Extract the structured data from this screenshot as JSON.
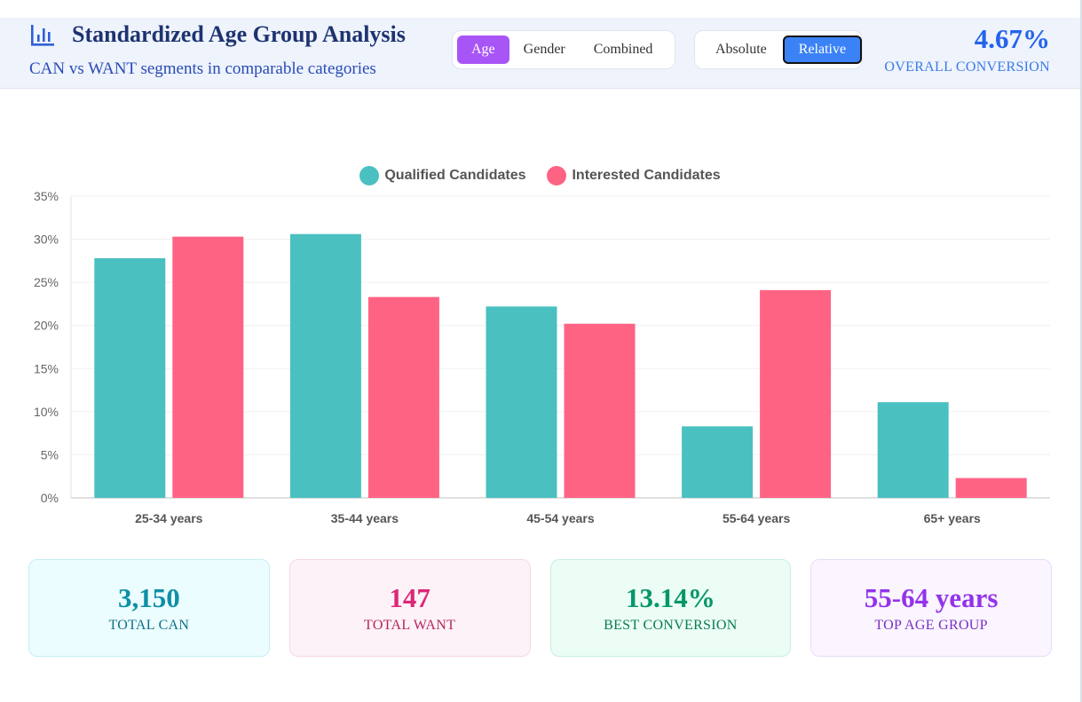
{
  "header": {
    "title": "Standardized Age Group Analysis",
    "subtitle": "CAN vs WANT segments in comparable categories",
    "icon": "bar-chart-icon",
    "group_tabs": [
      "Age",
      "Gender",
      "Combined"
    ],
    "active_group": "Age",
    "mode_tabs": [
      "Absolute",
      "Relative"
    ],
    "active_mode": "Relative",
    "overall_value": "4.67%",
    "overall_label": "OVERALL CONVERSION"
  },
  "chart_data": {
    "type": "bar",
    "categories": [
      "25-34 years",
      "35-44 years",
      "45-54 years",
      "55-64 years",
      "65+ years"
    ],
    "series": [
      {
        "name": "Qualified Candidates",
        "color": "#4bc0c0",
        "values": [
          27.8,
          30.6,
          22.2,
          8.3,
          11.1
        ]
      },
      {
        "name": "Interested Candidates",
        "color": "#ff6384",
        "values": [
          30.3,
          23.3,
          20.2,
          24.1,
          2.3
        ]
      }
    ],
    "y_ticks": [
      "0%",
      "5%",
      "10%",
      "15%",
      "20%",
      "25%",
      "30%",
      "35%"
    ],
    "ylim": [
      0,
      35
    ],
    "legend_position": "top-center",
    "grid": true
  },
  "stats": [
    {
      "value": "3,150",
      "label": "TOTAL CAN",
      "color": "#0e8fa6",
      "label_color": "#0f6f86",
      "bg": "#ecfdff",
      "border": "#c3eff5"
    },
    {
      "value": "147",
      "label": "TOTAL WANT",
      "color": "#db2777",
      "label_color": "#b3245f",
      "bg": "#fdf2f8",
      "border": "#f6d6e6"
    },
    {
      "value": "13.14%",
      "label": "BEST CONVERSION",
      "color": "#059669",
      "label_color": "#0a7a55",
      "bg": "#ecfdf5",
      "border": "#c6efdc"
    },
    {
      "value": "55-64 years",
      "label": "TOP AGE GROUP",
      "color": "#9333ea",
      "label_color": "#7a2fc4",
      "bg": "#faf5ff",
      "border": "#e9dcf8"
    }
  ]
}
